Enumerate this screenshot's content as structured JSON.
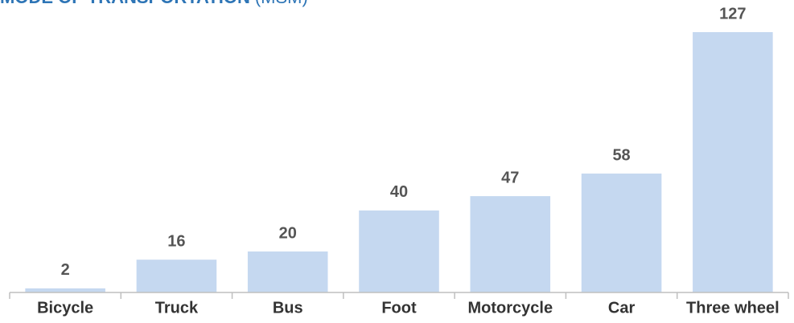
{
  "chart_data": {
    "type": "bar",
    "title": "MODE OF TRANSPORTATION",
    "title_note": "(MSM)",
    "categories": [
      "Bicycle",
      "Truck",
      "Bus",
      "Foot",
      "Motorcycle",
      "Car",
      "Three wheel"
    ],
    "values": [
      2,
      16,
      20,
      40,
      47,
      58,
      127
    ],
    "color": "#c5d8f0"
  }
}
